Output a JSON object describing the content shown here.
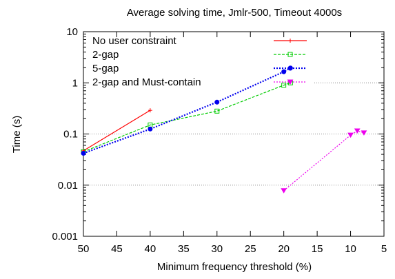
{
  "chart_data": {
    "type": "line",
    "title": "Average solving time, Jmlr-500, Timeout 4000s",
    "xlabel": "Minimum frequency threshold (%)",
    "ylabel": "Time (s)",
    "x_reversed": true,
    "xlim": [
      50,
      5
    ],
    "ylim": [
      0.001,
      10
    ],
    "y_scale": "log",
    "x_ticks": [
      50,
      45,
      40,
      35,
      30,
      25,
      20,
      15,
      10,
      5
    ],
    "y_ticks": [
      {
        "value": 10,
        "label": "10"
      },
      {
        "value": 1,
        "label": "1"
      },
      {
        "value": 0.1,
        "label": "0.1"
      },
      {
        "value": 0.01,
        "label": "0.01"
      },
      {
        "value": 0.001,
        "label": "0.001"
      }
    ],
    "grid": "horizontal-dotted",
    "legend_position": "top-left",
    "series": [
      {
        "name": "No user constraint",
        "color": "#ff0000",
        "dash": "solid",
        "marker": "plus",
        "points": [
          {
            "x": 50,
            "y": 0.047
          },
          {
            "x": 40,
            "y": 0.29
          }
        ]
      },
      {
        "name": "2-gap",
        "color": "#00cc00",
        "dash": "dashed",
        "marker": "square",
        "points": [
          {
            "x": 50,
            "y": 0.045
          },
          {
            "x": 40,
            "y": 0.15
          },
          {
            "x": 30,
            "y": 0.28
          },
          {
            "x": 20,
            "y": 0.9
          },
          {
            "x": 19,
            "y": 1.0
          }
        ]
      },
      {
        "name": "5-gap",
        "color": "#0000ee",
        "dash": "dotted",
        "marker": "circle",
        "points": [
          {
            "x": 50,
            "y": 0.042
          },
          {
            "x": 40,
            "y": 0.125
          },
          {
            "x": 30,
            "y": 0.42
          },
          {
            "x": 20,
            "y": 1.65
          },
          {
            "x": 19,
            "y": 1.95
          }
        ]
      },
      {
        "name": "2-gap and Must-contain",
        "color": "#ee00ee",
        "dash": "dotted",
        "marker": "triangle-down",
        "points": [
          {
            "x": 20,
            "y": 0.0078
          },
          {
            "x": 10,
            "y": 0.095
          },
          {
            "x": 9,
            "y": 0.115
          },
          {
            "x": 8,
            "y": 0.105
          }
        ]
      }
    ]
  }
}
